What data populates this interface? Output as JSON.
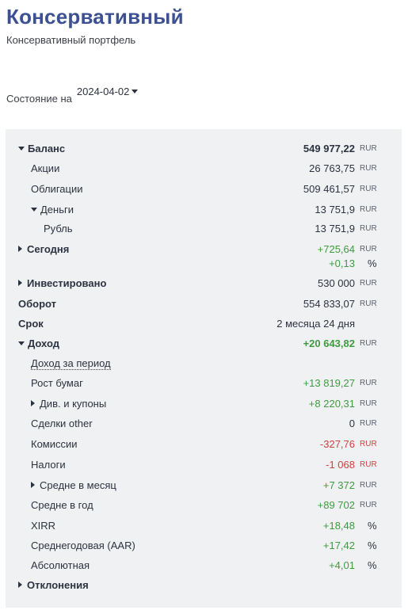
{
  "header": {
    "title": "Консервативный",
    "subtitle": "Консервативный портфель"
  },
  "state": {
    "label": "Состояние на",
    "date": "2024-04-02"
  },
  "rows": {
    "balance": {
      "label": "Баланс",
      "value": "549 977,22",
      "unit": "RUR"
    },
    "stocks": {
      "label": "Акции",
      "value": "26 763,75",
      "unit": "RUR"
    },
    "bonds": {
      "label": "Облигации",
      "value": "509 461,57",
      "unit": "RUR"
    },
    "money": {
      "label": "Деньги",
      "value": "13 751,9",
      "unit": "RUR"
    },
    "ruble": {
      "label": "Рубль",
      "value": "13 751,9",
      "unit": "RUR"
    },
    "today": {
      "label": "Сегодня",
      "value": "+725,64",
      "unit": "RUR",
      "value2": "+0,13",
      "unit2": "%"
    },
    "invested": {
      "label": "Инвестировано",
      "value": "530 000",
      "unit": "RUR"
    },
    "turnover": {
      "label": "Оборот",
      "value": "554 833,07",
      "unit": "RUR"
    },
    "term": {
      "label": "Срок",
      "value": "2 месяца 24 дня"
    },
    "income": {
      "label": "Доход",
      "value": "+20 643,82",
      "unit": "RUR"
    },
    "period_income": {
      "label": "Доход за период"
    },
    "growth": {
      "label": "Рост бумаг",
      "value": "+13 819,27",
      "unit": "RUR"
    },
    "dividends": {
      "label": "Див. и купоны",
      "value": "+8 220,31",
      "unit": "RUR"
    },
    "deals_other": {
      "label": "Сделки other",
      "value": "0",
      "unit": "RUR"
    },
    "commissions": {
      "label": "Комиссии",
      "value": "-327,76",
      "unit": "RUR"
    },
    "taxes": {
      "label": "Налоги",
      "value": "-1 068",
      "unit": "RUR"
    },
    "avg_month": {
      "label": "Средне в месяц",
      "value": "+7 372",
      "unit": "RUR"
    },
    "avg_year": {
      "label": "Средне в год",
      "value": "+89 702",
      "unit": "RUR"
    },
    "xirr": {
      "label": "XIRR",
      "value": "+18,48",
      "unit": "%"
    },
    "aar": {
      "label": "Среднегодовая (AAR)",
      "value": "+17,42",
      "unit": "%"
    },
    "absolute": {
      "label": "Абсолютная",
      "value": "+4,01",
      "unit": "%"
    },
    "deviations": {
      "label": "Отклонения"
    }
  },
  "colors": {
    "title": "#3d5092",
    "positive": "#3f9b3f",
    "negative": "#d13f3f",
    "panel_bg": "#f0f1f3"
  }
}
